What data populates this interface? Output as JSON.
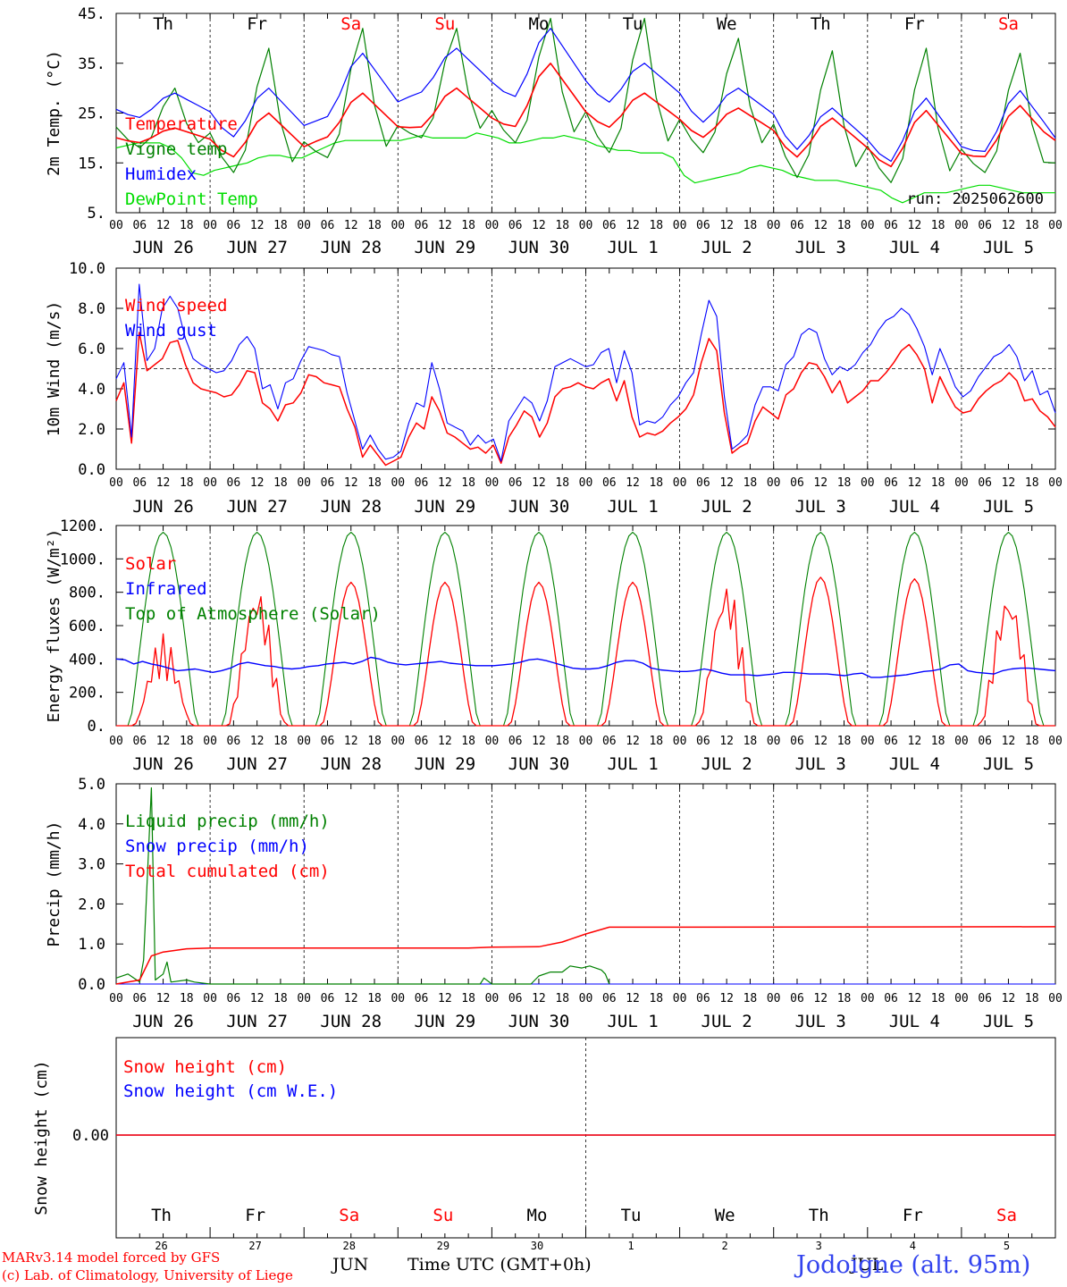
{
  "run_label": "run: 2025062600",
  "footer": {
    "model": "MARv3.14 model forced by GFS",
    "lab": "(c) Lab. of Climatology, University of Liege",
    "month": "JUN",
    "month2": "JUL",
    "xlabel": "Time UTC (GMT+0h)",
    "station": "Jodoigne (alt. 95m)"
  },
  "colors": {
    "red": "#ff0000",
    "green": "#008000",
    "blue": "#0000ff",
    "lightgreen": "#00dd00",
    "weekend": "#ff0000"
  },
  "days": [
    "Th",
    "Fr",
    "Sa",
    "Su",
    "Mo",
    "Tu",
    "We",
    "Th",
    "Fr",
    "Sa"
  ],
  "weekend_idx": [
    2,
    3,
    9
  ],
  "dates": [
    "JUN 26",
    "JUN 27",
    "JUN 28",
    "JUN 29",
    "JUN 30",
    "JUL  1",
    "JUL  2",
    "JUL  3",
    "JUL  4",
    "JUL  5"
  ],
  "date_nums": [
    "26",
    "27",
    "28",
    "29",
    "30",
    "1",
    "2",
    "3",
    "4",
    "5"
  ],
  "hour_ticks": [
    "00",
    "06",
    "12",
    "18"
  ],
  "end_tick": "00",
  "chart_data": [
    {
      "type": "line",
      "ylabel": "2m Temp. (°C)",
      "ylim": [
        5,
        45
      ],
      "yticks": [
        "45.",
        "35.",
        "25.",
        "15.",
        "5."
      ],
      "ytick_vals": [
        45,
        35,
        25,
        15,
        5
      ],
      "legend": [
        "Temperature",
        "Vigne temp",
        "Humidex",
        "DewPoint Temp"
      ],
      "x_hours": "0..240 step 3",
      "series": [
        {
          "name": "Temperature",
          "color": "red",
          "profile": "diurnal",
          "minmax": [
            [
              19,
              22
            ],
            [
              16,
              25
            ],
            [
              20,
              29
            ],
            [
              22,
              30
            ],
            [
              22,
              35
            ],
            [
              22,
              29
            ],
            [
              20,
              26
            ],
            [
              16,
              24
            ],
            [
              14,
              25.5
            ],
            [
              16,
              26.5
            ]
          ],
          "end": 19.5
        },
        {
          "name": "Vigne temp",
          "color": "green",
          "profile": "diurnal_sharp",
          "minmax": [
            [
              18,
              30
            ],
            [
              13,
              38
            ],
            [
              16,
              42
            ],
            [
              20,
              42
            ],
            [
              19,
              44
            ],
            [
              17,
              44
            ],
            [
              17,
              40
            ],
            [
              12,
              37.5
            ],
            [
              11,
              38
            ],
            [
              13,
              37
            ]
          ],
          "end": 15
        },
        {
          "name": "Humidex",
          "color": "blue",
          "profile": "diurnal",
          "minmax": [
            [
              24,
              29
            ],
            [
              20,
              30
            ],
            [
              24,
              37
            ],
            [
              29,
              38
            ],
            [
              28,
              42
            ],
            [
              27,
              35
            ],
            [
              23,
              30
            ],
            [
              17.5,
              26
            ],
            [
              15,
              28
            ],
            [
              17,
              29.5
            ]
          ],
          "end": 20
        },
        {
          "name": "DewPoint Temp",
          "color": "lightgreen",
          "values": [
            18,
            18.5,
            19,
            19,
            19,
            18,
            16,
            13,
            12.5,
            13.5,
            14,
            14.5,
            15,
            16,
            16.5,
            16.5,
            16,
            16,
            17,
            18,
            19,
            19.5,
            19.5,
            19.5,
            19.5,
            19.5,
            19.5,
            20,
            20.5,
            20,
            20,
            20,
            20,
            21,
            20.5,
            20,
            19,
            19,
            19.5,
            20,
            20,
            20.5,
            20,
            19.5,
            18.5,
            18,
            17.5,
            17.5,
            17,
            17,
            17,
            16,
            12.5,
            11,
            11.5,
            12,
            12.5,
            13,
            14,
            14.5,
            14,
            13.5,
            12.5,
            12,
            11.5,
            11.5,
            11.5,
            11,
            10.5,
            10,
            9.5,
            8,
            7,
            8,
            9,
            9,
            9,
            9.5,
            10,
            10.5,
            10.5,
            10,
            9.5,
            9,
            9,
            9,
            9
          ]
        }
      ]
    },
    {
      "type": "line",
      "ylabel": "10m Wind (m/s)",
      "ylim": [
        0,
        10
      ],
      "yticks": [
        "10.0",
        "8.0",
        "6.0",
        "4.0",
        "2.0",
        "0.0"
      ],
      "ytick_vals": [
        10,
        8,
        6,
        4,
        2,
        0
      ],
      "reference_line": 5,
      "legend": [
        "Wind speed",
        "Wind gust"
      ],
      "series": [
        {
          "name": "Wind speed",
          "color": "red",
          "values": [
            3.4,
            4.3,
            1.3,
            6.8,
            4.9,
            5.2,
            5.5,
            6.3,
            6.4,
            5.2,
            4.3,
            4.0,
            3.9,
            3.8,
            3.6,
            3.7,
            4.2,
            4.9,
            4.8,
            3.3,
            3.0,
            2.4,
            3.2,
            3.3,
            3.8,
            4.7,
            4.6,
            4.3,
            4.2,
            4.1,
            3.0,
            2.1,
            0.6,
            1.2,
            0.7,
            0.2,
            0.4,
            0.6,
            1.6,
            2.3,
            2.0,
            3.6,
            2.9,
            1.8,
            1.6,
            1.3,
            1.0,
            1.1,
            0.8,
            1.2,
            0.3,
            1.6,
            2.2,
            2.9,
            2.6,
            1.6,
            2.3,
            3.6,
            4.0,
            4.1,
            4.3,
            4.1,
            4.0,
            4.3,
            4.5,
            3.4,
            4.4,
            2.6,
            1.6,
            1.8,
            1.7,
            1.9,
            2.3,
            2.6,
            3.0,
            3.7,
            5.3,
            6.5,
            5.9,
            2.8,
            0.8,
            1.1,
            1.3,
            2.4,
            3.1,
            2.8,
            2.5,
            3.7,
            4.0,
            4.8,
            5.3,
            5.2,
            4.6,
            3.8,
            4.4,
            3.3,
            3.6,
            3.9,
            4.4,
            4.4,
            4.8,
            5.3,
            5.9,
            6.2,
            5.7,
            5.0,
            3.3,
            4.6,
            3.8,
            3.1,
            2.8,
            2.9,
            3.5,
            3.9,
            4.2,
            4.4,
            4.8,
            4.4,
            3.4,
            3.5,
            2.9,
            2.6,
            2.1
          ]
        },
        {
          "name": "Wind gust",
          "color": "blue",
          "values": [
            4.5,
            5.3,
            1.6,
            9.2,
            5.4,
            6.0,
            8.0,
            8.6,
            8.0,
            6.5,
            5.5,
            5.2,
            5.0,
            4.8,
            4.9,
            5.4,
            6.2,
            6.6,
            6.0,
            4.0,
            4.2,
            3.0,
            4.3,
            4.5,
            5.4,
            6.1,
            6.0,
            5.9,
            5.7,
            5.6,
            3.8,
            2.4,
            1.0,
            1.7,
            1.0,
            0.5,
            0.6,
            0.9,
            2.3,
            3.3,
            3.1,
            5.3,
            4.0,
            2.3,
            2.1,
            1.9,
            1.2,
            1.7,
            1.3,
            1.5,
            0.4,
            2.4,
            3.0,
            3.6,
            3.3,
            2.4,
            3.4,
            5.1,
            5.3,
            5.5,
            5.3,
            5.1,
            5.2,
            5.8,
            6.0,
            4.3,
            5.9,
            4.8,
            2.2,
            2.4,
            2.3,
            2.6,
            3.2,
            3.6,
            4.3,
            4.8,
            6.7,
            8.4,
            7.6,
            3.6,
            1.0,
            1.3,
            1.7,
            3.2,
            4.1,
            4.1,
            3.9,
            5.2,
            5.6,
            6.7,
            7.0,
            6.8,
            5.5,
            4.7,
            5.1,
            4.9,
            5.2,
            5.8,
            6.2,
            6.9,
            7.4,
            7.6,
            8.0,
            7.7,
            7.0,
            6.1,
            4.7,
            6.0,
            5.1,
            4.1,
            3.6,
            3.9,
            4.6,
            5.1,
            5.6,
            5.8,
            6.2,
            5.6,
            4.4,
            4.9,
            3.7,
            3.9,
            2.8
          ]
        }
      ]
    },
    {
      "type": "line",
      "ylabel": "Energy fluxes (W/m²)",
      "ylim": [
        0,
        1200
      ],
      "yticks": [
        "1200.",
        "1000.",
        "800.",
        "600.",
        "400.",
        "200.",
        "0."
      ],
      "ytick_vals": [
        1200,
        1000,
        800,
        600,
        400,
        200,
        0
      ],
      "legend": [
        "Solar",
        "Infrared",
        "Top of Atmosphere (Solar)"
      ],
      "series": [
        {
          "name": "Solar",
          "color": "red",
          "daily_peak": [
            550,
            860,
            860,
            860,
            860,
            860,
            890,
            890,
            880,
            830
          ],
          "cloudy_days": [
            0,
            1,
            6,
            9
          ]
        },
        {
          "name": "Infrared",
          "color": "blue",
          "values": [
            400,
            395,
            370,
            385,
            370,
            360,
            345,
            330,
            335,
            340,
            330,
            320,
            330,
            345,
            370,
            380,
            370,
            360,
            355,
            345,
            340,
            345,
            355,
            360,
            370,
            375,
            380,
            370,
            385,
            410,
            400,
            380,
            370,
            365,
            370,
            375,
            380,
            385,
            375,
            370,
            365,
            360,
            360,
            360,
            365,
            370,
            380,
            395,
            400,
            390,
            375,
            360,
            345,
            340,
            340,
            345,
            360,
            380,
            390,
            390,
            375,
            345,
            335,
            330,
            325,
            325,
            330,
            340,
            330,
            315,
            305,
            305,
            305,
            300,
            305,
            310,
            320,
            320,
            315,
            310,
            310,
            310,
            305,
            300,
            310,
            315,
            290,
            290,
            295,
            300,
            305,
            315,
            325,
            330,
            340,
            365,
            370,
            330,
            320,
            315,
            310,
            330,
            340,
            345,
            345,
            340,
            335,
            330
          ]
        },
        {
          "name": "Top of Atmosphere (Solar)",
          "color": "green",
          "daily_peak": 1160
        }
      ]
    },
    {
      "type": "line",
      "ylabel": "Precip (mm/h)",
      "ylim": [
        0,
        5
      ],
      "yticks": [
        "5.0",
        "4.0",
        "3.0",
        "2.0",
        "1.0",
        "0.0"
      ],
      "ytick_vals": [
        5,
        4,
        3,
        2,
        1,
        0
      ],
      "legend": [
        "Liquid precip (mm/h)",
        "Snow precip (mm/h)",
        "Total cumulated (cm)"
      ],
      "series": [
        {
          "name": "Liquid precip (mm/h)",
          "color": "green",
          "points": [
            [
              0,
              0.15
            ],
            [
              3,
              0.25
            ],
            [
              6,
              0.05
            ],
            [
              7,
              0.6
            ],
            [
              9,
              4.9
            ],
            [
              10,
              0.1
            ],
            [
              12,
              0.25
            ],
            [
              13,
              0.55
            ],
            [
              14,
              0.05
            ],
            [
              18,
              0.1
            ],
            [
              20,
              0.05
            ],
            [
              24,
              0
            ],
            [
              93,
              0
            ],
            [
              94,
              0.15
            ],
            [
              96,
              0
            ],
            [
              106,
              0
            ],
            [
              108,
              0.2
            ],
            [
              111,
              0.3
            ],
            [
              114,
              0.3
            ],
            [
              116,
              0.45
            ],
            [
              119,
              0.4
            ],
            [
              121,
              0.45
            ],
            [
              124,
              0.35
            ],
            [
              125,
              0.25
            ],
            [
              126,
              0
            ]
          ]
        },
        {
          "name": "Snow precip (mm/h)",
          "color": "blue",
          "points": [
            [
              0,
              0
            ],
            [
              240,
              0
            ]
          ]
        },
        {
          "name": "Total cumulated (cm)",
          "color": "red",
          "points": [
            [
              0,
              0
            ],
            [
              6,
              0.1
            ],
            [
              9,
              0.7
            ],
            [
              12,
              0.8
            ],
            [
              18,
              0.88
            ],
            [
              24,
              0.9
            ],
            [
              90,
              0.9
            ],
            [
              96,
              0.92
            ],
            [
              108,
              0.93
            ],
            [
              114,
              1.05
            ],
            [
              120,
              1.25
            ],
            [
              126,
              1.42
            ],
            [
              240,
              1.43
            ]
          ]
        }
      ]
    },
    {
      "type": "line",
      "ylabel": "Snow height (cm)",
      "yticks": [
        "0.00"
      ],
      "legend": [
        "Snow height (cm)",
        "Snow height (cm W.E.)"
      ],
      "series": [
        {
          "name": "Snow height (cm)",
          "color": "red",
          "points": [
            [
              0,
              0
            ],
            [
              240,
              0
            ]
          ]
        },
        {
          "name": "Snow height (cm W.E.)",
          "color": "blue",
          "points": [
            [
              0,
              0
            ],
            [
              240,
              0
            ]
          ]
        }
      ]
    }
  ]
}
